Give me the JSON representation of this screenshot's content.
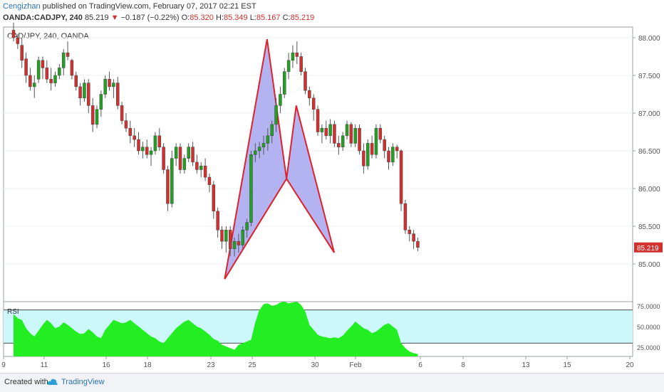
{
  "header": {
    "author": "Cengizhan",
    "published_text": "published on TradingView.com, February 07, 2017 02:21 EST",
    "symbol": "OANDA:CADJPY, 240",
    "last": "85.219",
    "change": "−0.187 (−0.22%)",
    "o_label": "O:",
    "o_value": "85.320",
    "h_label": "H:",
    "h_value": "85.349",
    "l_label": "L:",
    "l_value": "85.167",
    "c_label": "C:",
    "c_value": "85.219"
  },
  "footer": {
    "created": "Created with",
    "brand": "TradingView"
  },
  "colors": {
    "up": "#22a022",
    "down": "#d32f2f",
    "pattern_fill": "#9999ee",
    "pattern_line": "#e0202a",
    "rsi_band": "#ccf7fb",
    "rsi_fill": "#22ee22"
  },
  "chart_data": [
    {
      "type": "candlestick",
      "title": "CAD/JPY, 240, OANDA",
      "y_ticks": [
        "88.000",
        "87.500",
        "87.000",
        "86.500",
        "86.000",
        "85.500",
        "85.000"
      ],
      "x_ticks": [
        "9",
        "11",
        "16",
        "18",
        "23",
        "25",
        "30",
        "Feb",
        "6",
        "8",
        "13",
        "15",
        "20"
      ],
      "last_price_label": "85.219",
      "ylim": [
        84.62,
        88.1
      ],
      "candles": [
        [
          88.1,
          88.2,
          87.95,
          88.0
        ],
        [
          88.0,
          88.05,
          87.85,
          87.92
        ],
        [
          87.9,
          88.0,
          87.6,
          87.7
        ],
        [
          87.72,
          87.8,
          87.4,
          87.5
        ],
        [
          87.5,
          87.6,
          87.3,
          87.35
        ],
        [
          87.35,
          87.5,
          87.2,
          87.4
        ],
        [
          87.45,
          87.75,
          87.4,
          87.7
        ],
        [
          87.7,
          87.75,
          87.45,
          87.6
        ],
        [
          87.6,
          87.7,
          87.4,
          87.45
        ],
        [
          87.45,
          87.6,
          87.3,
          87.4
        ],
        [
          87.4,
          87.55,
          87.35,
          87.5
        ],
        [
          87.5,
          87.65,
          87.45,
          87.6
        ],
        [
          87.6,
          87.85,
          87.5,
          87.8
        ],
        [
          87.8,
          87.95,
          87.7,
          87.75
        ],
        [
          87.7,
          87.72,
          87.45,
          87.5
        ],
        [
          87.5,
          87.55,
          87.3,
          87.35
        ],
        [
          87.35,
          87.4,
          87.1,
          87.2
        ],
        [
          87.2,
          87.45,
          87.15,
          87.4
        ],
        [
          87.4,
          87.45,
          87.0,
          87.1
        ],
        [
          87.1,
          87.2,
          86.75,
          86.85
        ],
        [
          86.85,
          87.1,
          86.8,
          87.05
        ],
        [
          87.05,
          87.3,
          86.95,
          87.25
        ],
        [
          87.25,
          87.5,
          87.2,
          87.45
        ],
        [
          87.45,
          87.55,
          87.3,
          87.35
        ],
        [
          87.35,
          87.45,
          87.2,
          87.4
        ],
        [
          87.4,
          87.48,
          87.05,
          87.1
        ],
        [
          87.1,
          87.15,
          86.85,
          86.9
        ],
        [
          86.9,
          87.0,
          86.75,
          86.8
        ],
        [
          86.8,
          86.9,
          86.6,
          86.7
        ],
        [
          86.7,
          86.8,
          86.55,
          86.65
        ],
        [
          86.65,
          86.75,
          86.45,
          86.5
        ],
        [
          86.5,
          86.62,
          86.4,
          86.55
        ],
        [
          86.55,
          86.65,
          86.4,
          86.45
        ],
        [
          86.45,
          86.55,
          86.3,
          86.5
        ],
        [
          86.5,
          86.75,
          86.45,
          86.7
        ],
        [
          86.7,
          86.8,
          86.5,
          86.55
        ],
        [
          86.55,
          86.6,
          86.2,
          86.25
        ],
        [
          86.25,
          86.3,
          85.7,
          85.8
        ],
        [
          85.8,
          86.5,
          85.75,
          86.4
        ],
        [
          86.4,
          86.6,
          86.3,
          86.55
        ],
        [
          86.55,
          86.6,
          86.2,
          86.25
        ],
        [
          86.25,
          86.45,
          86.2,
          86.4
        ],
        [
          86.4,
          86.6,
          86.35,
          86.55
        ],
        [
          86.55,
          86.62,
          86.3,
          86.35
        ],
        [
          86.35,
          86.45,
          86.2,
          86.25
        ],
        [
          86.25,
          86.35,
          86.15,
          86.3
        ],
        [
          86.3,
          86.4,
          86.1,
          86.15
        ],
        [
          86.15,
          86.2,
          85.95,
          86.05
        ],
        [
          86.05,
          86.1,
          85.6,
          85.7
        ],
        [
          85.7,
          85.75,
          85.35,
          85.45
        ],
        [
          85.45,
          85.5,
          85.2,
          85.3
        ],
        [
          85.3,
          85.5,
          85.15,
          85.45
        ],
        [
          85.45,
          85.5,
          85.1,
          85.2
        ],
        [
          85.2,
          85.35,
          85.1,
          85.3
        ],
        [
          85.3,
          85.4,
          85.15,
          85.25
        ],
        [
          85.25,
          85.5,
          85.2,
          85.45
        ],
        [
          85.45,
          85.6,
          85.35,
          85.55
        ],
        [
          85.55,
          86.5,
          85.5,
          86.45
        ],
        [
          86.45,
          86.6,
          86.35,
          86.5
        ],
        [
          86.5,
          86.62,
          86.4,
          86.55
        ],
        [
          86.55,
          86.7,
          86.45,
          86.6
        ],
        [
          86.6,
          86.8,
          86.5,
          86.7
        ],
        [
          86.7,
          86.9,
          86.6,
          86.85
        ],
        [
          86.85,
          87.2,
          86.75,
          87.1
        ],
        [
          87.1,
          87.35,
          87.0,
          87.25
        ],
        [
          87.25,
          87.6,
          87.2,
          87.55
        ],
        [
          87.55,
          87.8,
          87.45,
          87.7
        ],
        [
          87.7,
          87.9,
          87.6,
          87.8
        ],
        [
          87.8,
          87.95,
          87.65,
          87.75
        ],
        [
          87.75,
          87.8,
          87.5,
          87.55
        ],
        [
          87.55,
          87.6,
          87.25,
          87.3
        ],
        [
          87.3,
          87.35,
          87.1,
          87.2
        ],
        [
          87.2,
          87.25,
          86.9,
          87.05
        ],
        [
          87.05,
          87.1,
          86.7,
          86.75
        ],
        [
          86.75,
          86.85,
          86.6,
          86.8
        ],
        [
          86.8,
          86.9,
          86.65,
          86.7
        ],
        [
          86.7,
          86.92,
          86.6,
          86.85
        ],
        [
          86.85,
          86.9,
          86.55,
          86.6
        ],
        [
          86.6,
          86.7,
          86.45,
          86.55
        ],
        [
          86.55,
          86.75,
          86.5,
          86.7
        ],
        [
          86.7,
          86.9,
          86.65,
          86.85
        ],
        [
          86.85,
          86.88,
          86.55,
          86.6
        ],
        [
          86.6,
          86.85,
          86.55,
          86.8
        ],
        [
          86.8,
          86.85,
          86.45,
          86.5
        ],
        [
          86.5,
          86.6,
          86.2,
          86.3
        ],
        [
          86.3,
          86.65,
          86.25,
          86.6
        ],
        [
          86.6,
          86.7,
          86.4,
          86.45
        ],
        [
          86.45,
          86.85,
          86.4,
          86.8
        ],
        [
          86.8,
          86.85,
          86.6,
          86.65
        ],
        [
          86.65,
          86.7,
          86.4,
          86.5
        ],
        [
          86.5,
          86.55,
          86.25,
          86.35
        ],
        [
          86.35,
          86.6,
          86.3,
          86.55
        ],
        [
          86.55,
          86.58,
          86.4,
          86.5
        ],
        [
          86.5,
          86.52,
          85.7,
          85.8
        ],
        [
          85.8,
          85.85,
          85.4,
          85.45
        ],
        [
          85.45,
          85.5,
          85.3,
          85.4
        ],
        [
          85.4,
          85.45,
          85.2,
          85.3
        ],
        [
          85.3,
          85.35,
          85.17,
          85.22
        ]
      ],
      "pattern": {
        "X": [
          23.9,
          84.8
        ],
        "A": [
          28.7,
          87.98
        ],
        "B": [
          30.9,
          86.13
        ],
        "C": [
          32.0,
          87.1
        ],
        "D": [
          36.3,
          85.15
        ]
      }
    },
    {
      "type": "area",
      "title": "RSI",
      "y_ticks": [
        "75.0000",
        "50.0000",
        "25.0000"
      ],
      "ylim": [
        14,
        80
      ],
      "band": [
        30,
        70
      ],
      "values": [
        65,
        60,
        58,
        48,
        42,
        38,
        45,
        52,
        58,
        54,
        48,
        50,
        55,
        52,
        48,
        44,
        41,
        42,
        47,
        43,
        38,
        36,
        46,
        52,
        58,
        56,
        54,
        55,
        58,
        54,
        50,
        46,
        42,
        38,
        36,
        32,
        30,
        36,
        42,
        48,
        52,
        56,
        58,
        54,
        50,
        48,
        44,
        40,
        35,
        33,
        28,
        26,
        24,
        22,
        28,
        30,
        32,
        34,
        55,
        70,
        77,
        78,
        75,
        76,
        79,
        80,
        78,
        79,
        80,
        76,
        68,
        52,
        46,
        40,
        38,
        37,
        36,
        37,
        36,
        39,
        45,
        50,
        56,
        52,
        48,
        46,
        42,
        44,
        48,
        52,
        54,
        50,
        46,
        30,
        24,
        20,
        18,
        17
      ]
    }
  ]
}
